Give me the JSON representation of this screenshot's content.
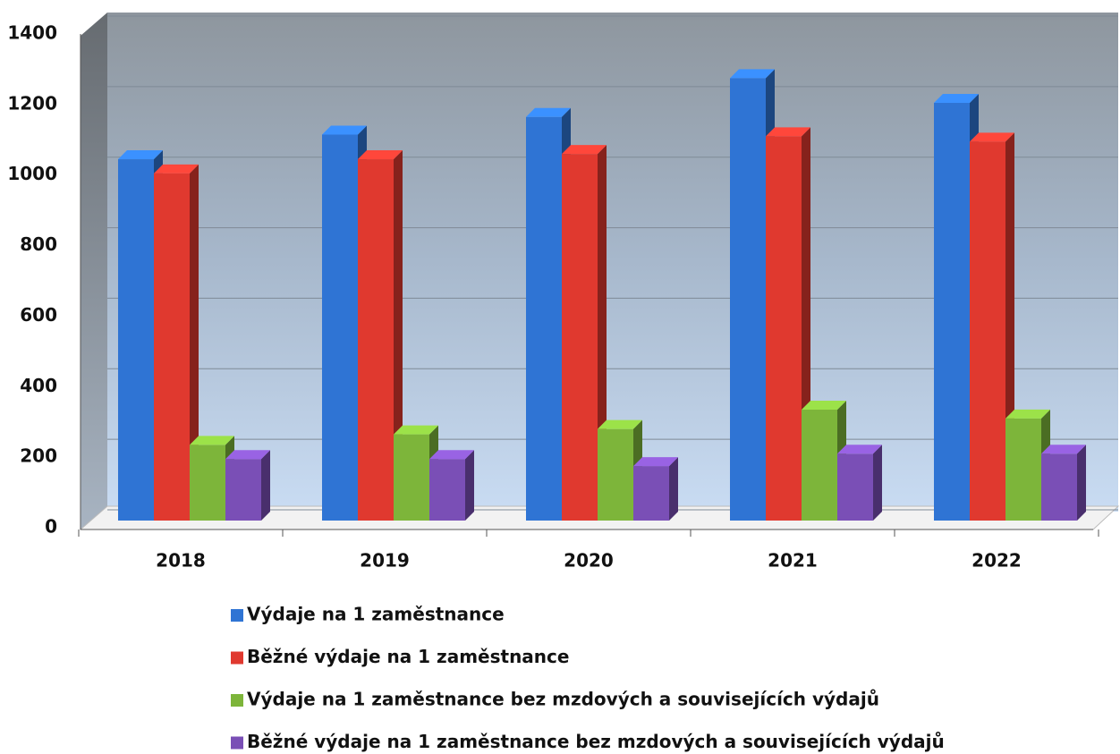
{
  "chart_data": {
    "type": "bar3d",
    "categories": [
      "2018",
      "2019",
      "2020",
      "2021",
      "2022"
    ],
    "series": [
      {
        "name": "Výdaje na 1 zaměstnance",
        "color": "#2f74d4",
        "values": [
          1060,
          1130,
          1180,
          1290,
          1220
        ]
      },
      {
        "name": "Běžné výdaje na 1 zaměstnance",
        "color": "#e0392f",
        "values": [
          1020,
          1060,
          1075,
          1125,
          1110
        ]
      },
      {
        "name": "Výdaje na 1 zaměstnance bez mzdových a souvisejících výdajů",
        "color": "#7db53a",
        "values": [
          250,
          280,
          295,
          350,
          325
        ]
      },
      {
        "name": "Běžné výdaje na 1 zaměstnance bez mzdových a souvisejících výdajů",
        "color": "#7a4fb6",
        "values": [
          210,
          210,
          190,
          225,
          225
        ]
      }
    ],
    "ylim": [
      0,
      1400
    ],
    "yticks": [
      0,
      200,
      400,
      600,
      800,
      1000,
      1200,
      1400
    ],
    "grid": true,
    "legend": "bottom"
  }
}
